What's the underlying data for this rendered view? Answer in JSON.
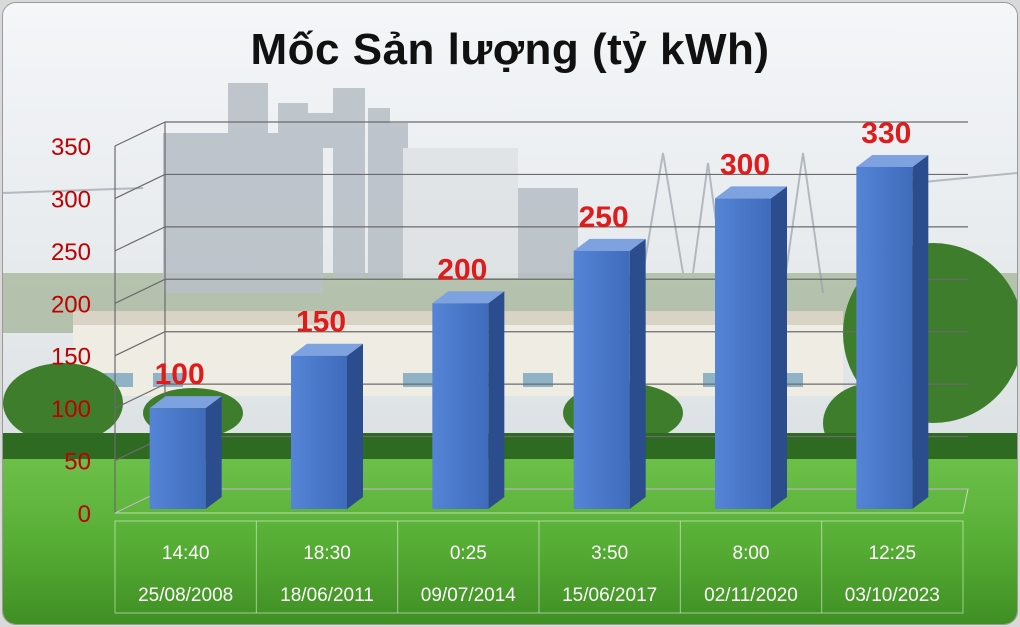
{
  "chart_data": {
    "type": "bar",
    "title": "Mốc Sản lượng (tỷ kWh)",
    "categories": [
      {
        "time": "14:40",
        "date": "25/08/2008"
      },
      {
        "time": "18:30",
        "date": "18/06/2011"
      },
      {
        "time": "0:25",
        "date": "09/07/2014"
      },
      {
        "time": "3:50",
        "date": "15/06/2017"
      },
      {
        "time": "8:00",
        "date": "02/11/2020"
      },
      {
        "time": "12:25",
        "date": "03/10/2023"
      }
    ],
    "values": [
      100,
      150,
      200,
      250,
      300,
      330
    ],
    "data_labels": [
      "100",
      "150",
      "200",
      "250",
      "300",
      "330"
    ],
    "ylim": [
      0,
      350
    ],
    "yticks": [
      "0",
      "50",
      "100",
      "150",
      "200",
      "250",
      "300",
      "350"
    ],
    "ytick_values": [
      0,
      50,
      100,
      150,
      200,
      250,
      300,
      350
    ],
    "grid": true,
    "legend": "none",
    "colors": {
      "bar_front": "#4a77c9",
      "bar_side": "#2b4d8e",
      "bar_top": "#7ea1e0",
      "data_label": "#e01b1b",
      "tick_label": "#c00000",
      "category_label": "#ffffff"
    }
  }
}
